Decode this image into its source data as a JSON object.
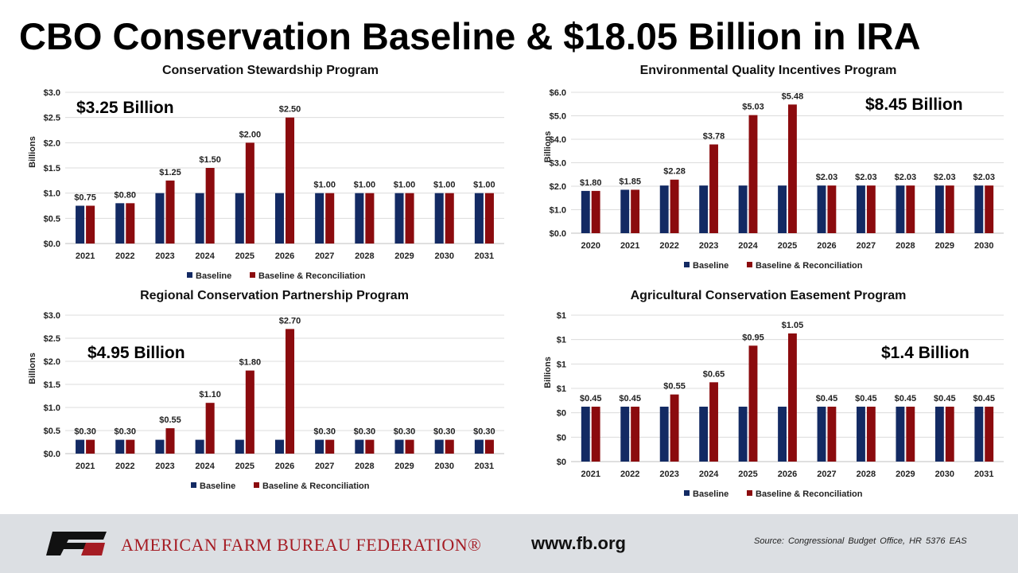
{
  "title": "CBO Conservation Baseline & $18.05 Billion in IRA",
  "colors": {
    "baseline": "#132a63",
    "reconciliation": "#8b0b0e",
    "brand_red": "#a51c24",
    "footer_bg": "#dcdfe3"
  },
  "legend": {
    "baseline": "Baseline",
    "reconciliation": "Baseline & Reconciliation"
  },
  "chart_data": [
    {
      "type": "bar",
      "title": "Conservation Stewardship Program",
      "ylabel": "Billions",
      "total_label": "$3.25 Billion",
      "categories": [
        "2021",
        "2022",
        "2023",
        "2024",
        "2025",
        "2026",
        "2027",
        "2028",
        "2029",
        "2030",
        "2031"
      ],
      "series": [
        {
          "name": "Baseline",
          "values": [
            0.75,
            0.8,
            1.0,
            1.0,
            1.0,
            1.0,
            1.0,
            1.0,
            1.0,
            1.0,
            1.0
          ]
        },
        {
          "name": "Baseline & Reconciliation",
          "values": [
            0.75,
            0.8,
            1.25,
            1.5,
            2.0,
            2.5,
            1.0,
            1.0,
            1.0,
            1.0,
            1.0
          ]
        }
      ],
      "data_labels": [
        "$0.75",
        "$0.80",
        "$1.25",
        "$1.50",
        "$2.00",
        "$2.50",
        "$1.00",
        "$1.00",
        "$1.00",
        "$1.00",
        "$1.00"
      ],
      "yticks": [
        "$0.0",
        "$0.5",
        "$1.0",
        "$1.5",
        "$2.0",
        "$2.5",
        "$3.0"
      ],
      "ylim": [
        0,
        3.0
      ],
      "legend_position": "bottom"
    },
    {
      "type": "bar",
      "title": "Environmental Quality Incentives Program",
      "ylabel": "Billions",
      "total_label": "$8.45 Billion",
      "categories": [
        "2020",
        "2021",
        "2022",
        "2023",
        "2024",
        "2025",
        "2026",
        "2027",
        "2028",
        "2029",
        "2030"
      ],
      "series": [
        {
          "name": "Baseline",
          "values": [
            1.8,
            1.85,
            2.03,
            2.03,
            2.03,
            2.03,
            2.03,
            2.03,
            2.03,
            2.03,
            2.03
          ]
        },
        {
          "name": "Baseline & Reconciliation",
          "values": [
            1.8,
            1.85,
            2.28,
            3.78,
            5.03,
            5.48,
            2.03,
            2.03,
            2.03,
            2.03,
            2.03
          ]
        }
      ],
      "data_labels": [
        "$1.80",
        "$1.85",
        "$2.28",
        "$3.78",
        "$5.03",
        "$5.48",
        "$2.03",
        "$2.03",
        "$2.03",
        "$2.03",
        "$2.03"
      ],
      "yticks": [
        "$0.0",
        "$1.0",
        "$2.0",
        "$3.0",
        "$4.0",
        "$5.0",
        "$6.0"
      ],
      "ylim": [
        0,
        6.0
      ],
      "legend_position": "bottom"
    },
    {
      "type": "bar",
      "title": "Regional Conservation Partnership Program",
      "ylabel": "Billions",
      "total_label": "$4.95 Billion",
      "categories": [
        "2021",
        "2022",
        "2023",
        "2024",
        "2025",
        "2026",
        "2027",
        "2028",
        "2029",
        "2030",
        "2031"
      ],
      "series": [
        {
          "name": "Baseline",
          "values": [
            0.3,
            0.3,
            0.3,
            0.3,
            0.3,
            0.3,
            0.3,
            0.3,
            0.3,
            0.3,
            0.3
          ]
        },
        {
          "name": "Baseline & Reconciliation",
          "values": [
            0.3,
            0.3,
            0.55,
            1.1,
            1.8,
            2.7,
            0.3,
            0.3,
            0.3,
            0.3,
            0.3
          ]
        }
      ],
      "data_labels": [
        "$0.30",
        "$0.30",
        "$0.55",
        "$1.10",
        "$1.80",
        "$2.70",
        "$0.30",
        "$0.30",
        "$0.30",
        "$0.30",
        "$0.30"
      ],
      "yticks": [
        "$0.0",
        "$0.5",
        "$1.0",
        "$1.5",
        "$2.0",
        "$2.5",
        "$3.0"
      ],
      "ylim": [
        0,
        3.0
      ],
      "legend_position": "bottom"
    },
    {
      "type": "bar",
      "title": "Agricultural Conservation Easement Program",
      "ylabel": "Billions",
      "total_label": "$1.4 Billion",
      "categories": [
        "2021",
        "2022",
        "2023",
        "2024",
        "2025",
        "2026",
        "2027",
        "2028",
        "2029",
        "2030",
        "2031"
      ],
      "series": [
        {
          "name": "Baseline",
          "values": [
            0.45,
            0.45,
            0.45,
            0.45,
            0.45,
            0.45,
            0.45,
            0.45,
            0.45,
            0.45,
            0.45
          ]
        },
        {
          "name": "Baseline & Reconciliation",
          "values": [
            0.45,
            0.45,
            0.55,
            0.65,
            0.95,
            1.05,
            0.45,
            0.45,
            0.45,
            0.45,
            0.45
          ]
        }
      ],
      "data_labels": [
        "$0.45",
        "$0.45",
        "$0.55",
        "$0.65",
        "$0.95",
        "$1.05",
        "$0.45",
        "$0.45",
        "$0.45",
        "$0.45",
        "$0.45"
      ],
      "yticks": [
        "$0",
        "$0",
        "$0",
        "$1",
        "$1",
        "$1",
        "$1"
      ],
      "ylim": [
        0,
        1.2
      ],
      "legend_position": "bottom"
    }
  ],
  "footer": {
    "org_name": "AMERICAN FARM BUREAU FEDERATION®",
    "logo_text": "FB",
    "website": "www.fb.org",
    "source": "Source: Congressional Budget Office, HR 5376 EAS"
  }
}
